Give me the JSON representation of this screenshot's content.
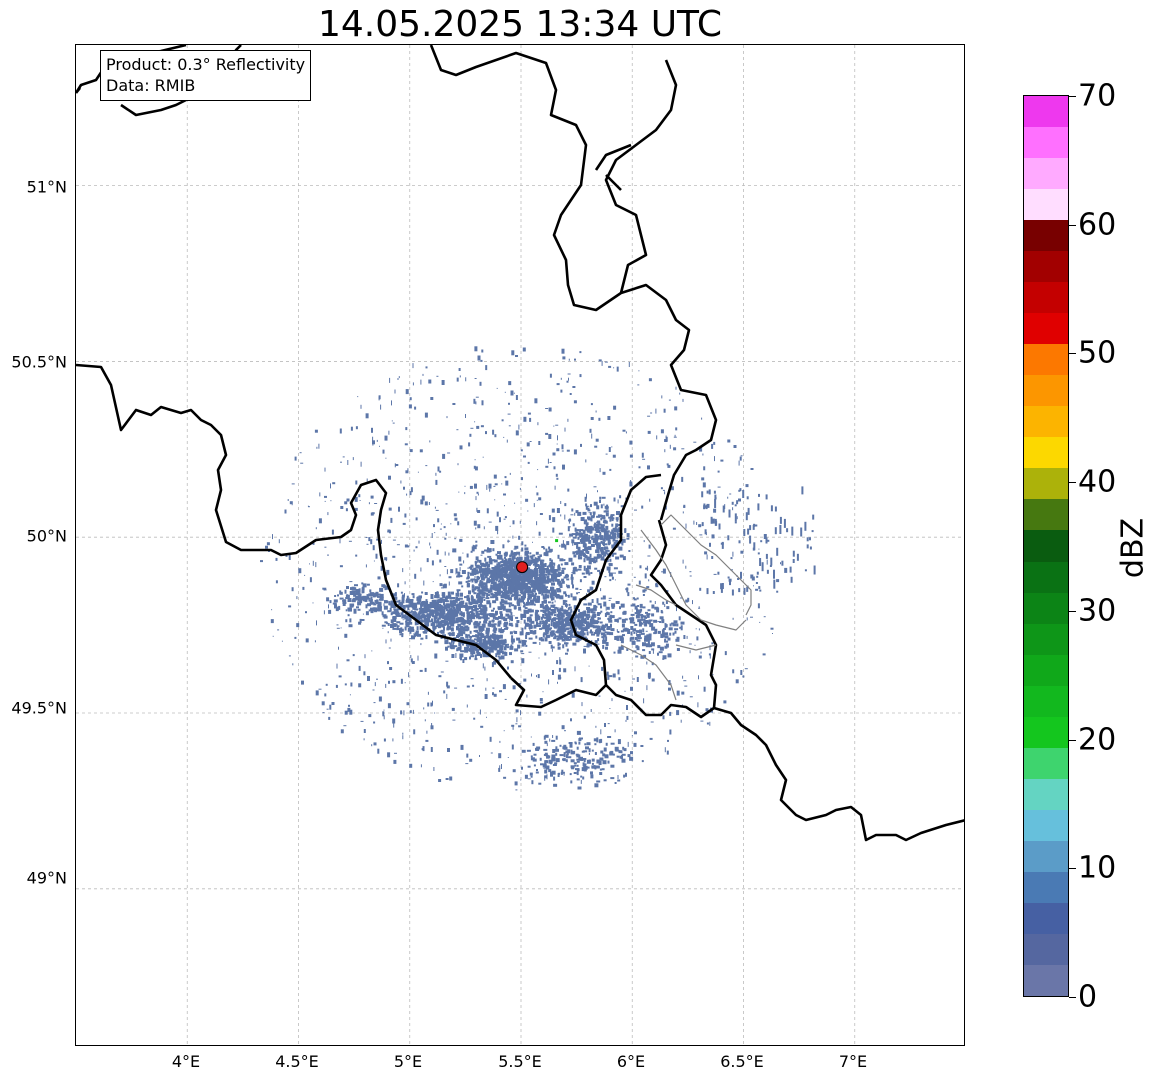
{
  "title": "14.05.2025 13:34 UTC",
  "info": {
    "product_line": "Product: 0.3° Reflectivity",
    "data_line": "Data: RMIB"
  },
  "axes": {
    "lat_labels": [
      "51°N",
      "50.5°N",
      "50°N",
      "49.5°N",
      "49°N"
    ],
    "lon_labels": [
      "4°E",
      "4.5°E",
      "5°E",
      "5.5°E",
      "6°E",
      "6.5°E",
      "7°E"
    ]
  },
  "radar_site": {
    "lat": 49.915,
    "lon": 5.505
  },
  "colorbar": {
    "unit": "dBZ",
    "min": 0,
    "max": 70,
    "tick_labels": [
      "0",
      "10",
      "20",
      "30",
      "40",
      "50",
      "60",
      "70"
    ],
    "colors": [
      "#6a76a8",
      "#5567a0",
      "#4660a3",
      "#4a7ab4",
      "#5b9cc8",
      "#66c0dc",
      "#64d4c2",
      "#3ed46e",
      "#14c61e",
      "#12b81e",
      "#10a81a",
      "#0e9618",
      "#0c8416",
      "#0a7214",
      "#0a5c10",
      "#467810",
      "#acb20a",
      "#fcd800",
      "#fcb400",
      "#fc9600",
      "#fc7800",
      "#e00000",
      "#c40000",
      "#a20000",
      "#780000",
      "#ffddff",
      "#ffaaff",
      "#ff70ff",
      "#ee38ee"
    ]
  },
  "chart_data": {
    "type": "heatmap",
    "title": "14.05.2025 13:34 UTC",
    "xlabel": "",
    "ylabel": "",
    "xlim": [
      3.5,
      7.5
    ],
    "ylim": [
      48.55,
      51.4
    ],
    "colorbar_label": "dBZ",
    "colorbar_range": [
      0,
      70
    ]
  },
  "colors": {
    "precip_main": "#5c76a8",
    "border_country": "#000000",
    "border_region": "#808080",
    "radar_marker": "#e02020"
  }
}
